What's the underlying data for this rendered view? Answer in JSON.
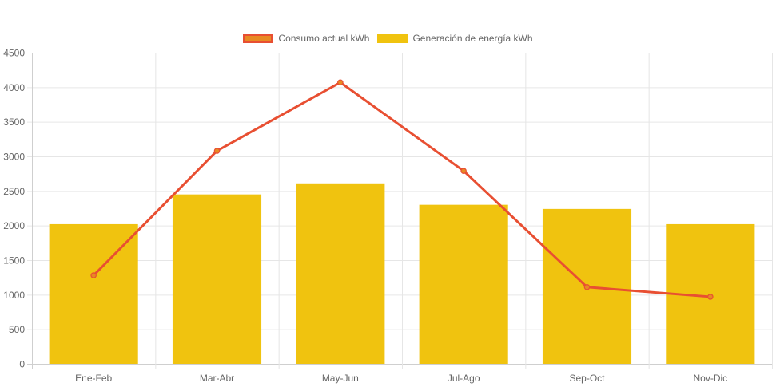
{
  "chart_data": {
    "type": "bar",
    "categories": [
      "Ene-Feb",
      "Mar-Abr",
      "May-Jun",
      "Jul-Ago",
      "Sep-Oct",
      "Nov-Dic"
    ],
    "series": [
      {
        "name": "Consumo actual kWh",
        "type": "line",
        "values": [
          1280,
          3080,
          4070,
          2790,
          1110,
          970
        ],
        "color": "#e84f32",
        "fill_color": "#e88a23"
      },
      {
        "name": "Generación de energía kWh",
        "type": "bar",
        "values": [
          2020,
          2450,
          2610,
          2300,
          2240,
          2020
        ],
        "color": "#f0c30f"
      }
    ],
    "ylim": [
      0,
      4500
    ],
    "yticks": [
      0,
      500,
      1000,
      1500,
      2000,
      2500,
      3000,
      3500,
      4000,
      4500
    ],
    "grid": true,
    "legend_position": "top",
    "xlabel": "",
    "ylabel": ""
  }
}
